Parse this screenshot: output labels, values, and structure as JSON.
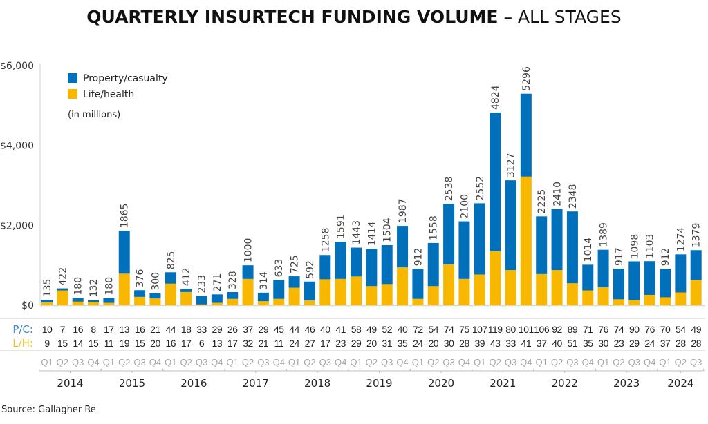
{
  "chart_data": {
    "type": "bar",
    "stacked": true,
    "title": "QUARTERLY INSURTECH FUNDING VOLUME",
    "title_suffix": "– ALL STAGES",
    "ylabel": "",
    "ylim": [
      0,
      6000
    ],
    "yticks": [
      {
        "value": 0,
        "label": "$0"
      },
      {
        "value": 2000,
        "label": "$2,000"
      },
      {
        "value": 4000,
        "label": "$4,000"
      },
      {
        "value": 6000,
        "label": "$6,000"
      }
    ],
    "legend": {
      "placement": "top-left",
      "entries": [
        {
          "name": "Property/casualty",
          "color": "#0070BA"
        },
        {
          "name": "Life/health",
          "color": "#F9B800"
        }
      ],
      "note": "(in millions)"
    },
    "years": [
      "2014",
      "2015",
      "2016",
      "2017",
      "2018",
      "2019",
      "2020",
      "2021",
      "2022",
      "2023",
      "2024"
    ],
    "categories": [
      "Q1",
      "Q2",
      "Q3",
      "Q4",
      "Q1",
      "Q2",
      "Q3",
      "Q4",
      "Q1",
      "Q2",
      "Q3",
      "Q4",
      "Q1",
      "Q2",
      "Q3",
      "Q4",
      "Q1",
      "Q2",
      "Q3",
      "Q4",
      "Q1",
      "Q2",
      "Q3",
      "Q4",
      "Q1",
      "Q2",
      "Q3",
      "Q4",
      "Q1",
      "Q2",
      "Q3",
      "Q4",
      "Q1",
      "Q2",
      "Q3",
      "Q4",
      "Q1",
      "Q2",
      "Q3",
      "Q4",
      "Q1",
      "Q2",
      "Q3"
    ],
    "totals": [
      135,
      422,
      180,
      132,
      180,
      1865,
      376,
      300,
      825,
      412,
      233,
      271,
      328,
      1000,
      314,
      633,
      725,
      592,
      1258,
      1591,
      1443,
      1414,
      1504,
      1987,
      912,
      1558,
      2538,
      2100,
      2552,
      4824,
      3127,
      5296,
      2225,
      2410,
      2348,
      1014,
      1389,
      917,
      1098,
      1103,
      912,
      1274,
      1379
    ],
    "series": [
      {
        "name": "Life/health",
        "color": "#F9B800",
        "values": [
          70,
          370,
          90,
          80,
          60,
          790,
          210,
          170,
          540,
          330,
          20,
          60,
          160,
          660,
          100,
          160,
          440,
          120,
          650,
          660,
          720,
          480,
          530,
          950,
          160,
          480,
          1020,
          660,
          770,
          1350,
          880,
          3220,
          780,
          880,
          550,
          370,
          450,
          150,
          130,
          260,
          200,
          320,
          630
        ]
      },
      {
        "name": "Property/casualty",
        "color": "#0070BA",
        "values": [
          65,
          52,
          90,
          52,
          120,
          1075,
          166,
          130,
          285,
          82,
          213,
          211,
          168,
          340,
          214,
          473,
          285,
          472,
          608,
          931,
          723,
          934,
          974,
          1037,
          752,
          1078,
          1518,
          1440,
          1782,
          3474,
          2247,
          2076,
          1445,
          1530,
          1798,
          644,
          939,
          767,
          968,
          843,
          712,
          954,
          749
        ]
      }
    ],
    "deal_counts": {
      "pc_label": "P/C:",
      "lh_label": "L/H:",
      "pc": [
        10,
        7,
        16,
        8,
        17,
        13,
        16,
        21,
        44,
        18,
        33,
        29,
        26,
        37,
        29,
        45,
        44,
        46,
        40,
        41,
        58,
        49,
        52,
        40,
        72,
        54,
        74,
        75,
        107,
        119,
        80,
        101,
        106,
        92,
        89,
        71,
        76,
        74,
        90,
        76,
        70,
        54,
        49
      ],
      "lh": [
        9,
        15,
        14,
        15,
        11,
        19,
        15,
        20,
        16,
        17,
        6,
        13,
        17,
        32,
        21,
        11,
        24,
        27,
        17,
        23,
        29,
        20,
        31,
        35,
        24,
        20,
        30,
        28,
        39,
        43,
        33,
        41,
        37,
        40,
        51,
        35,
        30,
        23,
        29,
        24,
        37,
        28,
        28
      ]
    },
    "source": "Source: Gallagher Re"
  }
}
